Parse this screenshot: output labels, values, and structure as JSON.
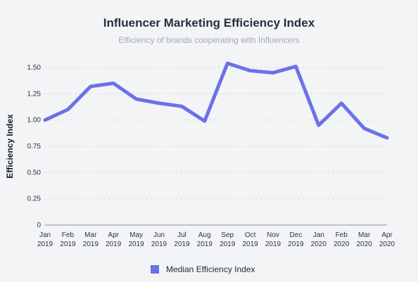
{
  "chart_data": {
    "type": "line",
    "title": "Influencer Marketing Efficiency Index",
    "subtitle": "Efficiency of brands cooperating with Influencers",
    "xlabel": "",
    "ylabel": "Efficiency Index",
    "categories": [
      {
        "month": "Jan",
        "year": "2019"
      },
      {
        "month": "Feb",
        "year": "2019"
      },
      {
        "month": "Mar",
        "year": "2019"
      },
      {
        "month": "Apr",
        "year": "2019"
      },
      {
        "month": "May",
        "year": "2019"
      },
      {
        "month": "Jun",
        "year": "2019"
      },
      {
        "month": "Jul",
        "year": "2019"
      },
      {
        "month": "Aug",
        "year": "2019"
      },
      {
        "month": "Sep",
        "year": "2019"
      },
      {
        "month": "Oct",
        "year": "2019"
      },
      {
        "month": "Nov",
        "year": "2019"
      },
      {
        "month": "Dec",
        "year": "2019"
      },
      {
        "month": "Jan",
        "year": "2020"
      },
      {
        "month": "Feb",
        "year": "2020"
      },
      {
        "month": "Mar",
        "year": "2020"
      },
      {
        "month": "Apr",
        "year": "2020"
      }
    ],
    "series": [
      {
        "name": "Median Efficiency Index",
        "color": "#6b72e6",
        "values": [
          1.0,
          1.1,
          1.32,
          1.35,
          1.2,
          1.16,
          1.13,
          0.99,
          1.54,
          1.47,
          1.45,
          1.51,
          0.95,
          1.16,
          0.92,
          0.83
        ]
      }
    ],
    "y_ticks": [
      "0",
      "0.25",
      "0.50",
      "0.75",
      "1.00",
      "1.25",
      "1.50"
    ],
    "ylim": [
      0,
      1.5
    ],
    "grid": true,
    "legend": "bottom-center"
  }
}
